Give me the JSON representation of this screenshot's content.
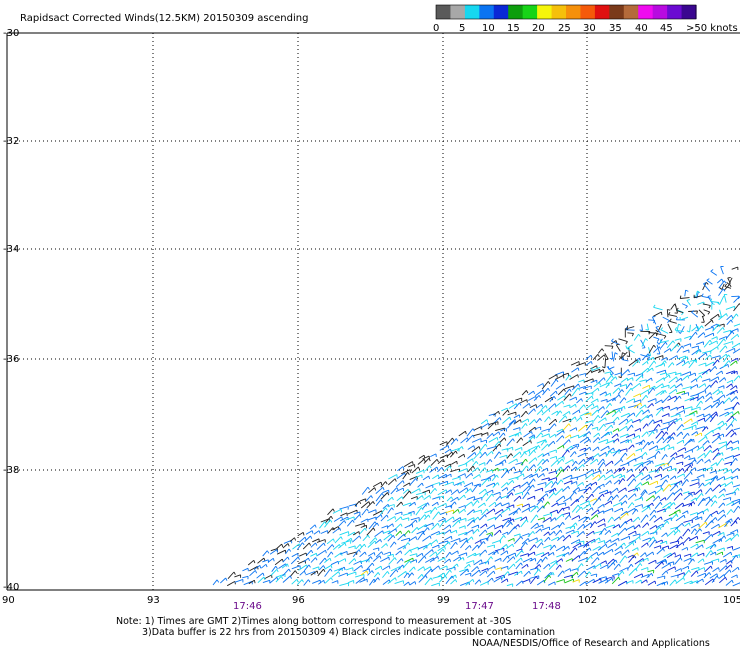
{
  "title": "Rapidsact Corrected Winds(12.5KM) 20150309 ascending",
  "colorbar": {
    "colors": [
      "#5a5a5a",
      "#a8a8a8",
      "#17d7f0",
      "#0a74f2",
      "#0a28d6",
      "#0d9e0d",
      "#17d417",
      "#f5f50a",
      "#f5c00a",
      "#f5900a",
      "#f55a0a",
      "#e01010",
      "#7a3a1a",
      "#b46a3a",
      "#f00af0",
      "#b80ae0",
      "#6b0ad2",
      "#3a0690"
    ],
    "labels": [
      "0",
      "5",
      "10",
      "15",
      "20",
      "25",
      "30",
      "35",
      "40",
      "45",
      ">50 knots"
    ]
  },
  "y_labels": [
    "-30",
    "-32",
    "-34",
    "-36",
    "-38",
    "-40"
  ],
  "x_labels": [
    "90",
    "93",
    "96",
    "99",
    "102",
    "105"
  ],
  "time_labels": [
    "17:46",
    "17:47",
    "17:48"
  ],
  "notes": {
    "line1": "Note: 1) Times are GMT 2)Times along bottom correspond to measurement at -30S",
    "line2": "3)Data buffer is 22 hrs from 20150309 4) Black circles indicate possible contamination",
    "line3": "NOAA/NESDIS/Office of Research and Applications"
  },
  "wind_colors": {
    "calm": "#202020",
    "light": "#17d7f0",
    "moderate": "#0a74f2",
    "strong": "#0a28d6",
    "green": "#17c417",
    "yellow": "#f5d80a"
  }
}
